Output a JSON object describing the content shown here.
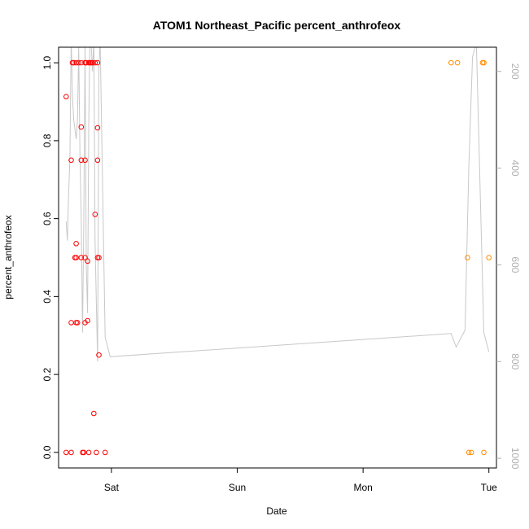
{
  "chart_data": {
    "type": "scatter",
    "title": "ATOM1 Northeast_Pacific percent_anthrofeox",
    "xlabel": "Date",
    "ylabel": "percent_anthrofeox",
    "x_ticks": [
      {
        "label": "Sat",
        "value": 0
      },
      {
        "label": "Sun",
        "value": 1
      },
      {
        "label": "Mon",
        "value": 2
      },
      {
        "label": "Tue",
        "value": 3
      }
    ],
    "xlim": [
      -0.42,
      3.06
    ],
    "ylim": [
      -0.04,
      1.04
    ],
    "y_ticks": [
      0.0,
      0.2,
      0.4,
      0.6,
      0.8,
      1.0
    ],
    "y_tick_labels": [
      "0.0",
      "0.2",
      "0.4",
      "0.6",
      "0.8",
      "1.0"
    ],
    "right_axis": {
      "ticks": [
        200,
        400,
        600,
        800,
        1000
      ],
      "tick_labels": [
        "200",
        "400",
        "600",
        "800",
        "1000"
      ],
      "lim": [
        1020,
        150
      ],
      "color": "#b0b0b0"
    },
    "grid": false,
    "series": [
      {
        "color": "#ff0000",
        "points": [
          [
            -0.36,
            0.913
          ],
          [
            -0.36,
            0.0
          ],
          [
            -0.32,
            0.75
          ],
          [
            -0.32,
            0.333
          ],
          [
            -0.32,
            0.0
          ],
          [
            -0.31,
            1.0
          ],
          [
            -0.3,
            1.0
          ],
          [
            -0.28,
            1.0
          ],
          [
            -0.29,
            0.5
          ],
          [
            -0.28,
            0.536
          ],
          [
            -0.28,
            0.5
          ],
          [
            -0.28,
            0.333
          ],
          [
            -0.27,
            0.333
          ],
          [
            -0.26,
            1.0
          ],
          [
            -0.24,
            1.0
          ],
          [
            -0.24,
            0.835
          ],
          [
            -0.24,
            0.75
          ],
          [
            -0.24,
            0.5
          ],
          [
            -0.23,
            0.0
          ],
          [
            -0.22,
            0.0
          ],
          [
            -0.21,
            1.0
          ],
          [
            -0.21,
            0.75
          ],
          [
            -0.21,
            0.5
          ],
          [
            -0.21,
            0.333
          ],
          [
            -0.2,
            1.0
          ],
          [
            -0.19,
            0.491
          ],
          [
            -0.19,
            0.338
          ],
          [
            -0.18,
            1.0
          ],
          [
            -0.18,
            0.0
          ],
          [
            -0.17,
            1.0
          ],
          [
            -0.16,
            1.0
          ],
          [
            -0.15,
            1.0
          ],
          [
            -0.14,
            0.1
          ],
          [
            -0.13,
            0.611
          ],
          [
            -0.13,
            1.0
          ],
          [
            -0.12,
            0.0
          ],
          [
            -0.11,
            1.0
          ],
          [
            -0.11,
            0.75
          ],
          [
            -0.11,
            0.833
          ],
          [
            -0.11,
            0.5
          ],
          [
            -0.1,
            0.5
          ],
          [
            -0.1,
            0.25
          ],
          [
            -0.05,
            0.0
          ]
        ]
      },
      {
        "color": "#ff8c00",
        "points": [
          [
            2.7,
            1.0
          ],
          [
            2.75,
            1.0
          ],
          [
            2.83,
            0.5
          ],
          [
            2.84,
            0.0
          ],
          [
            2.86,
            0.0
          ],
          [
            2.95,
            1.0
          ],
          [
            2.96,
            1.0
          ],
          [
            2.96,
            0.0
          ],
          [
            3.0,
            0.5
          ]
        ]
      }
    ],
    "pressure_line": {
      "color": "#c8c8c8",
      "points": [
        [
          -0.36,
          510
        ],
        [
          -0.35,
          550
        ],
        [
          -0.34,
          450
        ],
        [
          -0.33,
          380
        ],
        [
          -0.32,
          130
        ],
        [
          -0.31,
          250
        ],
        [
          -0.3,
          300
        ],
        [
          -0.29,
          320
        ],
        [
          -0.28,
          340
        ],
        [
          -0.27,
          300
        ],
        [
          -0.26,
          150
        ],
        [
          -0.25,
          380
        ],
        [
          -0.24,
          500
        ],
        [
          -0.23,
          740
        ],
        [
          -0.22,
          520
        ],
        [
          -0.21,
          150
        ],
        [
          -0.2,
          600
        ],
        [
          -0.19,
          700
        ],
        [
          -0.18,
          300
        ],
        [
          -0.17,
          120
        ],
        [
          -0.16,
          150
        ],
        [
          -0.15,
          200
        ],
        [
          -0.14,
          130
        ],
        [
          -0.13,
          550
        ],
        [
          -0.12,
          680
        ],
        [
          -0.11,
          800
        ],
        [
          -0.1,
          200
        ],
        [
          -0.09,
          130
        ],
        [
          -0.05,
          750
        ],
        [
          -0.01,
          790
        ],
        [
          2.7,
          742
        ],
        [
          2.74,
          770
        ],
        [
          2.81,
          735
        ],
        [
          2.84,
          400
        ],
        [
          2.87,
          170
        ],
        [
          2.9,
          140
        ],
        [
          2.96,
          740
        ],
        [
          3.0,
          780
        ]
      ]
    }
  }
}
